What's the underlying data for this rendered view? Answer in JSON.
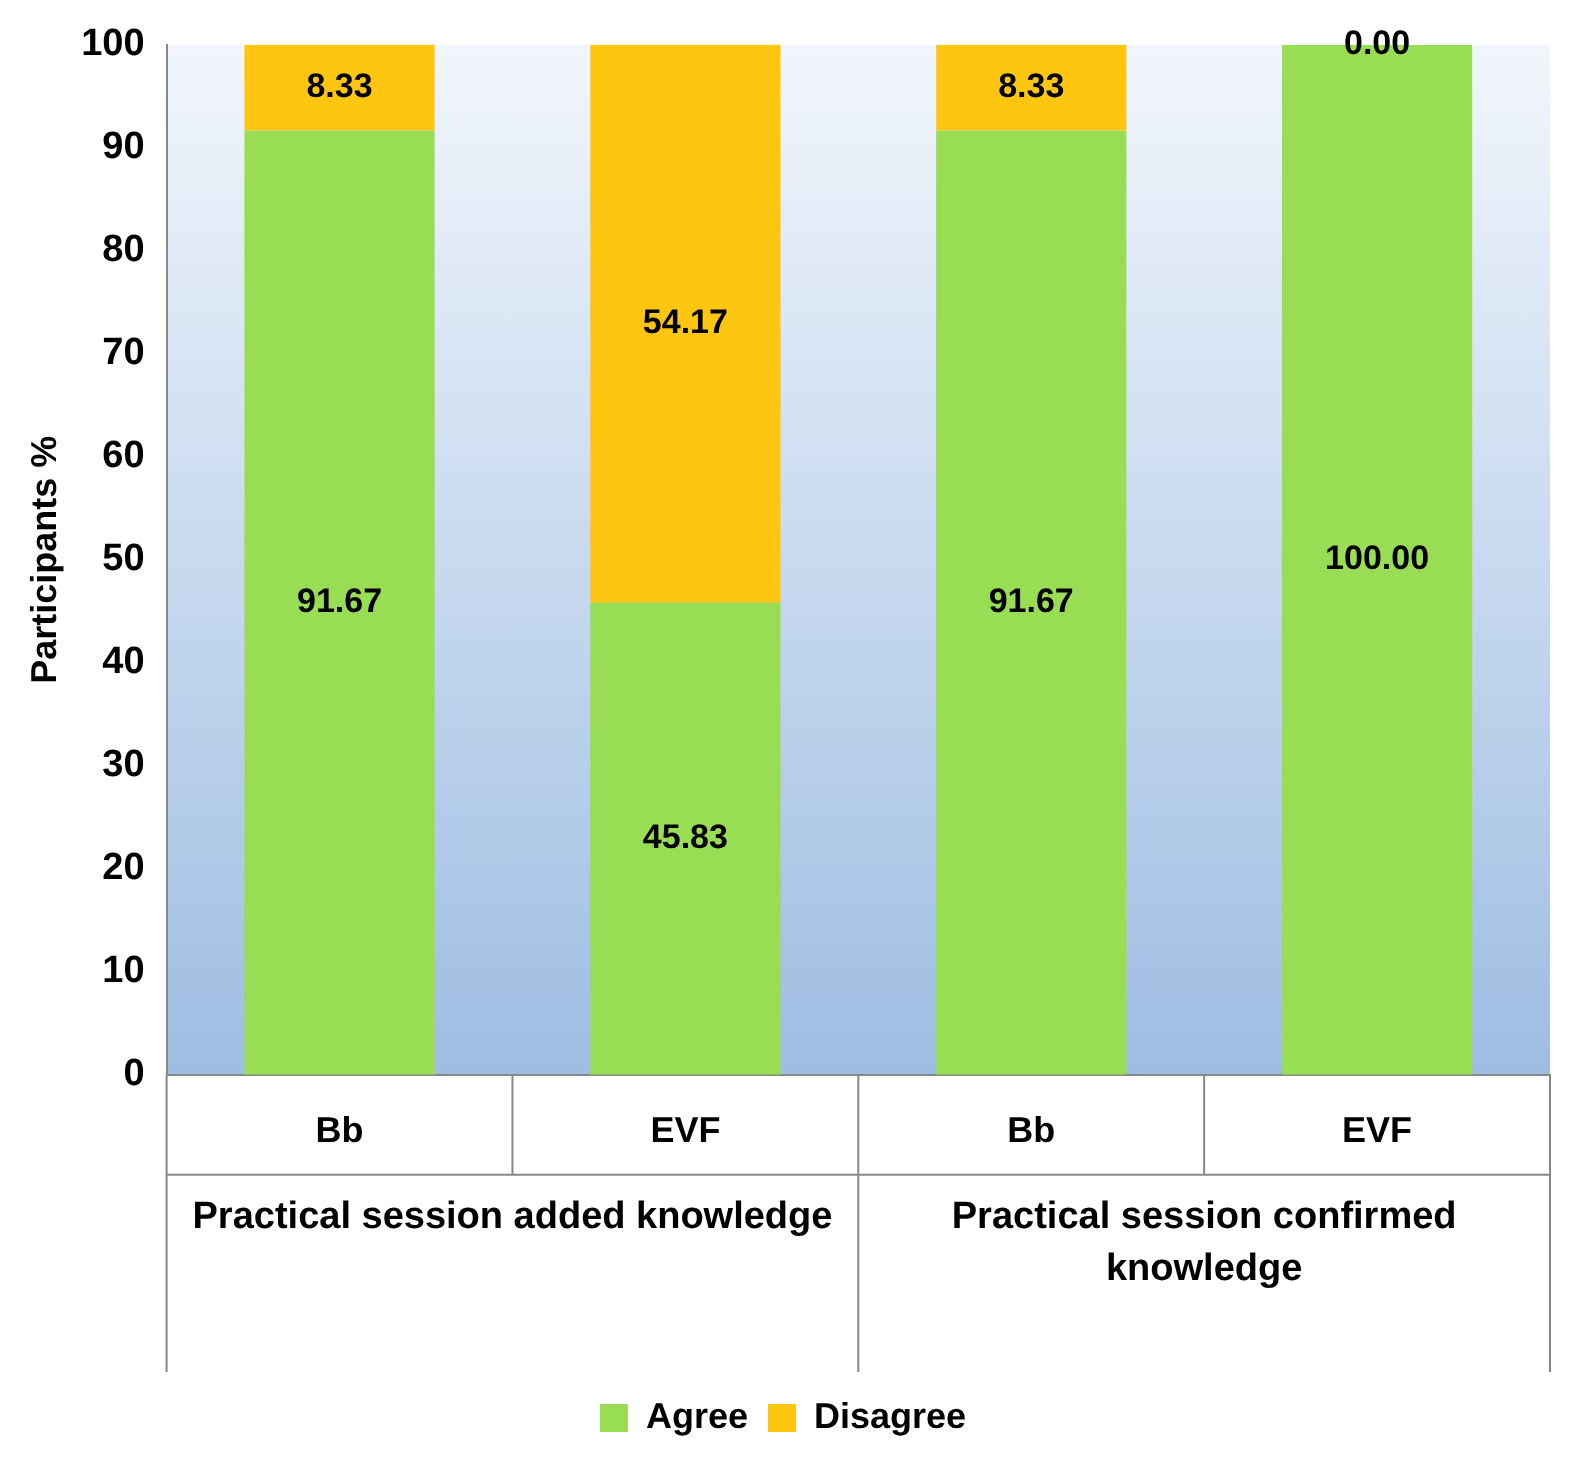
{
  "chart_data": {
    "type": "bar",
    "stacked": true,
    "ylabel": "Participants %",
    "categories": [
      "Bb",
      "EVF",
      "Bb",
      "EVF"
    ],
    "annotations": [
      "Practical session added knowledge",
      "Practical session confirmed knowledge"
    ],
    "series": [
      {
        "name": "Agree",
        "color": "#99dd55",
        "values": [
          91.67,
          45.83,
          91.67,
          100
        ],
        "value_labels": [
          "91.67",
          "45.83",
          "91.67",
          "100.00"
        ]
      },
      {
        "name": "Disagree",
        "color": "#ffc611",
        "values": [
          8.33,
          54.17,
          8.33,
          0
        ],
        "value_labels": [
          "8.33",
          "54.17",
          "8.33",
          "0.00"
        ]
      }
    ],
    "ylim": [
      0,
      100
    ],
    "yticks": [
      0,
      10,
      20,
      30,
      40,
      50,
      60,
      70,
      80,
      90,
      100
    ],
    "grid": false,
    "legend": "bottom"
  }
}
